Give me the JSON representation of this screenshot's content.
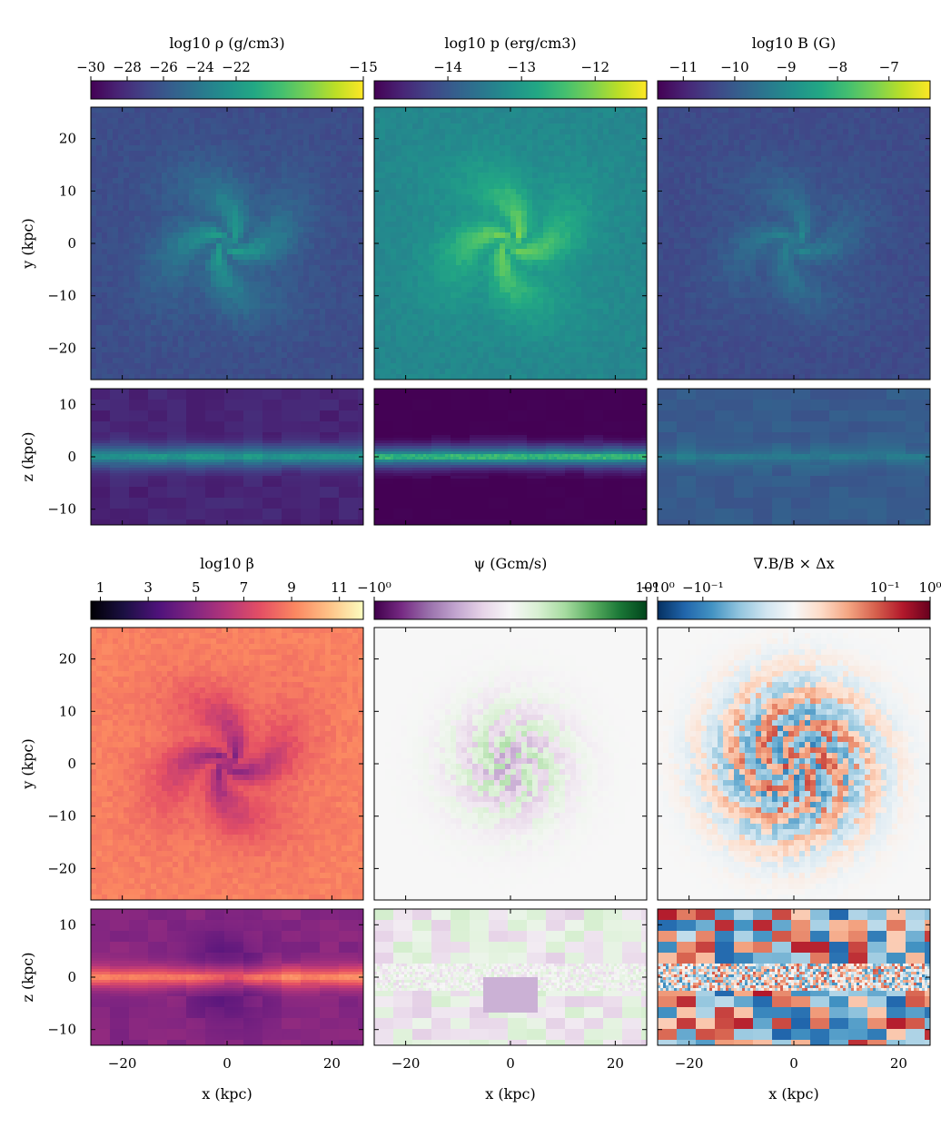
{
  "chart_data": {
    "type": "heatmap",
    "layout": "2 column-groups x 3 panels; each panel: face-on (x,y) map above edge-on (x,z) map",
    "xlabel": "x (kpc)",
    "ylabel_faceon": "y (kpc)",
    "ylabel_edgeon": "z (kpc)",
    "xlim": [
      -26,
      26
    ],
    "ylim_faceon": [
      -26,
      26
    ],
    "zlim_edgeon": [
      -13,
      13
    ],
    "x_ticks": [
      -20,
      0,
      20
    ],
    "y_ticks_faceon": [
      20,
      10,
      0,
      -10,
      -20
    ],
    "z_ticks_edgeon": [
      10,
      0,
      -10
    ],
    "x_tick_labels": [
      "−20",
      "0",
      "20"
    ],
    "y_tick_labels_faceon": [
      "20",
      "10",
      "0",
      "−10",
      "−20"
    ],
    "z_tick_labels_edgeon": [
      "10",
      "0",
      "−10"
    ],
    "panels": [
      {
        "id": "density",
        "colorbar_label": "log10 ρ (g/cm3)",
        "colormap": "viridis",
        "range": [
          -30,
          -15
        ],
        "ticks": [
          -30,
          -28,
          -26,
          -24,
          -22,
          -15
        ],
        "tick_labels": [
          "−30",
          "−28",
          "−26",
          "−24",
          "−22",
          "−15"
        ],
        "faceon": {
          "background": -26.5,
          "arms": -22.0,
          "center": -21.5
        },
        "edgeon": {
          "halo": -28.5,
          "disk": -23.5,
          "midplane": -21.5
        }
      },
      {
        "id": "pressure",
        "colorbar_label": "log10 p (erg/cm3)",
        "colormap": "viridis",
        "range": [
          -15,
          -11.3
        ],
        "ticks": [
          -14,
          -13,
          -12
        ],
        "tick_labels": [
          "−14",
          "−13",
          "−12"
        ],
        "faceon": {
          "background": -13.3,
          "arms": -12.1,
          "center": -12.0
        },
        "edgeon": {
          "halo": -15.0,
          "disk": -13.3,
          "midplane": -12.2
        }
      },
      {
        "id": "magnetic",
        "colorbar_label": "log10 B (G)",
        "colormap": "viridis",
        "range": [
          -11.5,
          -6.2
        ],
        "ticks": [
          -11,
          -10,
          -9,
          -8,
          -7
        ],
        "tick_labels": [
          "−11",
          "−10",
          "−9",
          "−8",
          "−7"
        ],
        "faceon": {
          "background": -10.3,
          "arms": -9.3,
          "center": -9.0
        },
        "edgeon": {
          "halo": -10.0,
          "disk": -9.6,
          "midplane": -9.2
        }
      },
      {
        "id": "beta",
        "colorbar_label": "log10 β",
        "colormap": "magma",
        "range": [
          0.6,
          12.0
        ],
        "ticks": [
          1,
          3,
          5,
          7,
          9,
          11
        ],
        "tick_labels": [
          "1",
          "3",
          "5",
          "7",
          "9",
          "11"
        ],
        "faceon": {
          "background": 9.0,
          "arms": 5.5,
          "center": 4.5
        },
        "edgeon": {
          "halo": 5.0,
          "disk": 8.5,
          "midplane": 9.5
        }
      },
      {
        "id": "psi",
        "colorbar_label": "ψ (Gcm/s)",
        "colormap": "PRGn (symlog)",
        "range": [
          -1,
          1
        ],
        "ticks": [
          -1,
          1
        ],
        "tick_labels": [
          "−10⁰",
          "10⁰"
        ],
        "faceon": {
          "background": 0.0,
          "arms": "alternating ±0.4"
        },
        "edgeon": {
          "halo": "blocky ±0.2",
          "center": -0.3
        }
      },
      {
        "id": "divB",
        "colorbar_label": "∇.B/B × Δx",
        "colormap": "RdBu_r (symlog)",
        "range": [
          -1,
          1
        ],
        "ticks": [
          -1,
          -0.1,
          0.1,
          1
        ],
        "tick_labels": [
          "−10⁰",
          "−10⁻¹",
          "10⁻¹",
          "10⁰"
        ],
        "faceon": {
          "background": 0.0,
          "disk": "alternating ±0.7"
        },
        "edgeon": {
          "halo": "blocky ±0.8"
        }
      }
    ]
  }
}
